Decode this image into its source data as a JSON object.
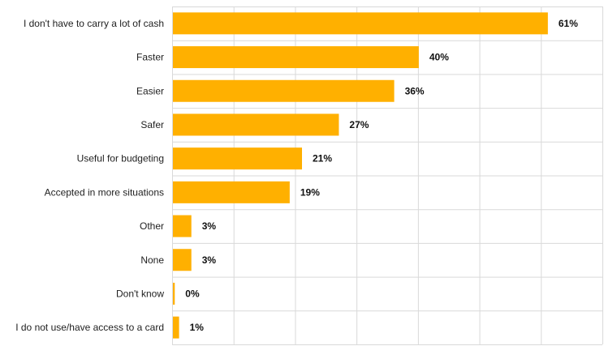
{
  "chart_data": {
    "type": "bar",
    "orientation": "horizontal",
    "categories": [
      "I don't have to carry a lot of cash",
      "Faster",
      "Easier",
      "Safer",
      "Useful for budgeting",
      "Accepted in more situations",
      "Other",
      "None",
      "Don't know",
      "I do not use/have access to a card"
    ],
    "values": [
      61,
      40,
      36,
      27,
      21,
      19,
      3,
      3,
      0.3,
      1
    ],
    "value_labels": [
      "61%",
      "40%",
      "36%",
      "27%",
      "21%",
      "19%",
      "3%",
      "3%",
      "0%",
      "1%"
    ],
    "xlim": [
      0,
      70
    ],
    "grid": true,
    "bar_color": "#FFB000",
    "title": "",
    "xlabel": "",
    "ylabel": ""
  }
}
